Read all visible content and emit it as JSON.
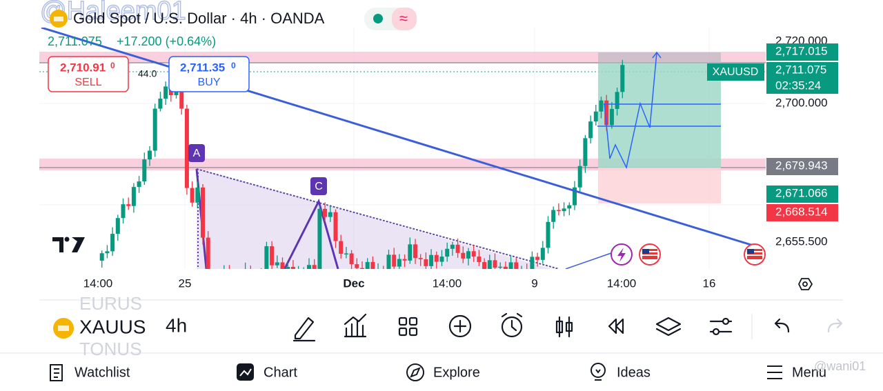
{
  "header": {
    "title": "Gold Spot / U.S. Dollar · 4h · OANDA",
    "watermark": "@Haleem01"
  },
  "quote": {
    "last": "2,711.075",
    "change": "+17.200 (+0.64%)"
  },
  "sell": {
    "price": "2,710.91",
    "tail": "0",
    "label": "SELL"
  },
  "buy": {
    "price": "2,711.35",
    "tail": "0",
    "label": "BUY"
  },
  "chart": {
    "volume_label": "44.0",
    "markers": [
      "A",
      "C"
    ],
    "symbol_tag": "XAUUSD",
    "countdown": "02:35:24",
    "price_scale": [
      "2,720.000",
      "2,700.000",
      "2,655.500"
    ],
    "price_tags": [
      {
        "text": "2,717.015",
        "color": "#089981"
      },
      {
        "text": "2,711.075",
        "color": "#089981"
      },
      {
        "text": "2,679.943",
        "color": "#787b86"
      },
      {
        "text": "2,671.066",
        "color": "#089981"
      },
      {
        "text": "2,668.514",
        "color": "#f23645"
      }
    ],
    "time_scale": [
      "14:00",
      "25",
      "Dec",
      "14:00",
      "9",
      "14:00",
      "16"
    ]
  },
  "toolbar": {
    "symbol": "XAUUS",
    "symbol_above": "EURUS",
    "symbol_below": "TONUS",
    "interval": "4h"
  },
  "nav": [
    "Watchlist",
    "Chart",
    "Explore",
    "Ideas",
    "Menu"
  ],
  "footer_watermark": "@wani01"
}
